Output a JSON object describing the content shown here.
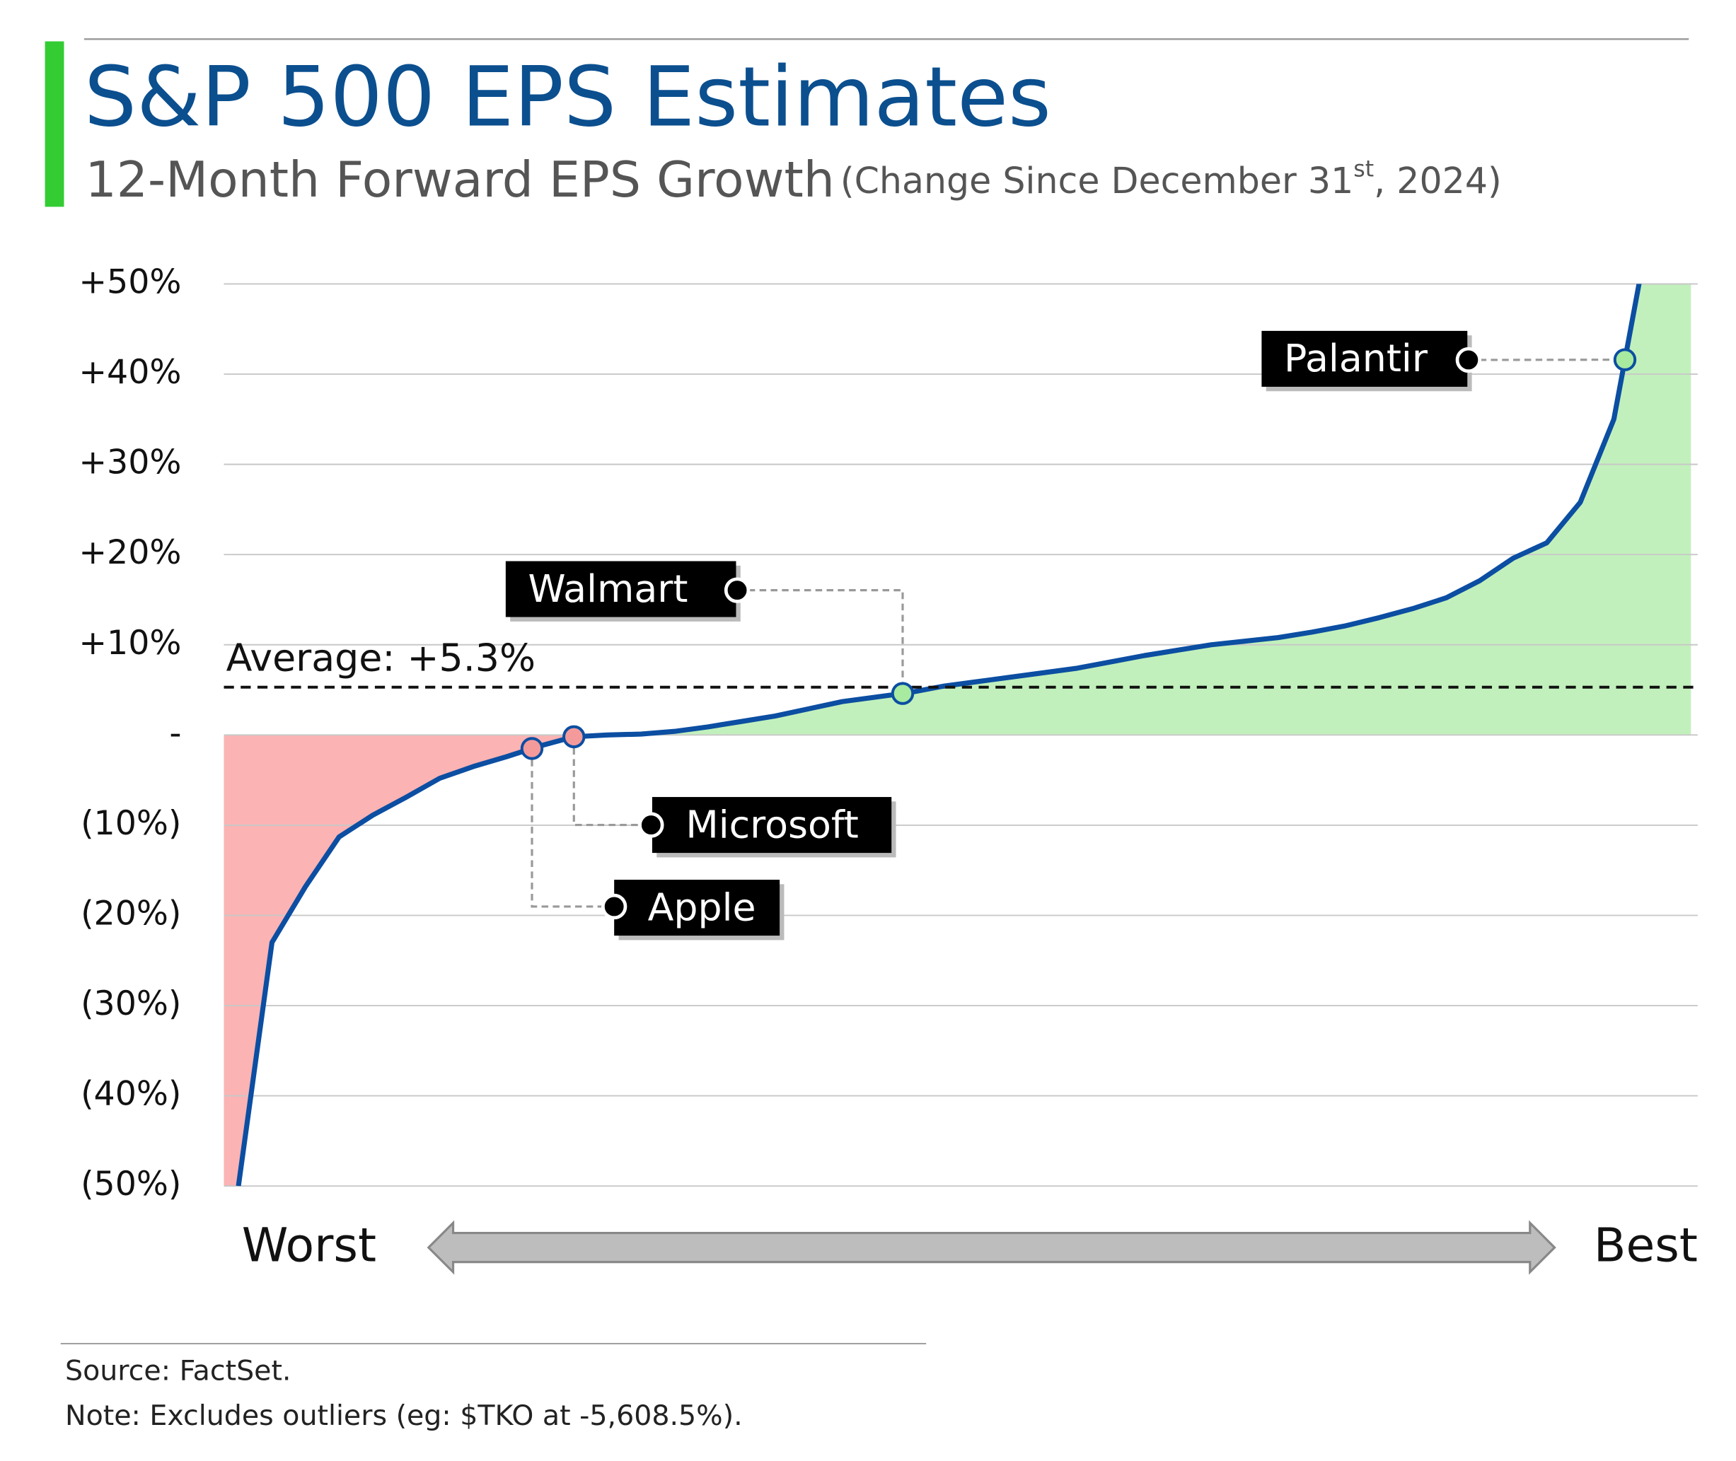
{
  "chart_data": {
    "type": "line",
    "title": "S&P 500 EPS Estimates",
    "subtitle": "12-Month Forward EPS Growth",
    "subtitle_note": "(Change Since December 31",
    "subtitle_note_sup": "st",
    "subtitle_note_end": ", 2024)",
    "x_start_label": "Worst",
    "x_end_label": "Best",
    "color": "#0b4ea2",
    "positive_fill": "#c2f0bc",
    "negative_fill": "#fbb3b3",
    "values": [
      -50,
      -23,
      -16.8,
      -11.3,
      -8.9,
      -6.9,
      -4.8,
      -3.5,
      -2.4,
      -1.2,
      -0.2,
      0,
      0.1,
      0.4,
      0.9,
      1.5,
      2.1,
      2.9,
      3.7,
      4.2,
      4.7,
      5.4,
      5.9,
      6.4,
      6.9,
      7.4,
      8.1,
      8.8,
      9.4,
      10.0,
      10.4,
      10.8,
      11.4,
      12.1,
      13.0,
      14.0,
      15.2,
      17.1,
      19.6,
      21.3,
      25.8,
      35.0,
      55
    ],
    "ylim": [
      -50,
      50
    ],
    "yticks": [
      {
        "value": 50,
        "label": "+50%"
      },
      {
        "value": 40,
        "label": "+40%"
      },
      {
        "value": 30,
        "label": "+30%"
      },
      {
        "value": 20,
        "label": "+20%"
      },
      {
        "value": 10,
        "label": "+10%"
      },
      {
        "value": 0,
        "label": "-"
      },
      {
        "value": -10,
        "label": "(10%)"
      },
      {
        "value": -20,
        "label": "(20%)"
      },
      {
        "value": -30,
        "label": "(30%)"
      },
      {
        "value": -40,
        "label": "(40%)"
      },
      {
        "value": -50,
        "label": "(50%)"
      }
    ],
    "grid": true,
    "average": {
      "value": 5.3,
      "label": "Average: +5.3%"
    },
    "annotations": [
      {
        "label": "Palantir",
        "value": 41.6
      },
      {
        "label": "Walmart",
        "value": 4.6
      },
      {
        "label": "Microsoft",
        "value": -0.2
      },
      {
        "label": "Apple",
        "value": -1.5
      }
    ],
    "source": "Source: FactSet.",
    "note": "Note: Excludes outliers (eg: $TKO at -5,608.5%)."
  }
}
